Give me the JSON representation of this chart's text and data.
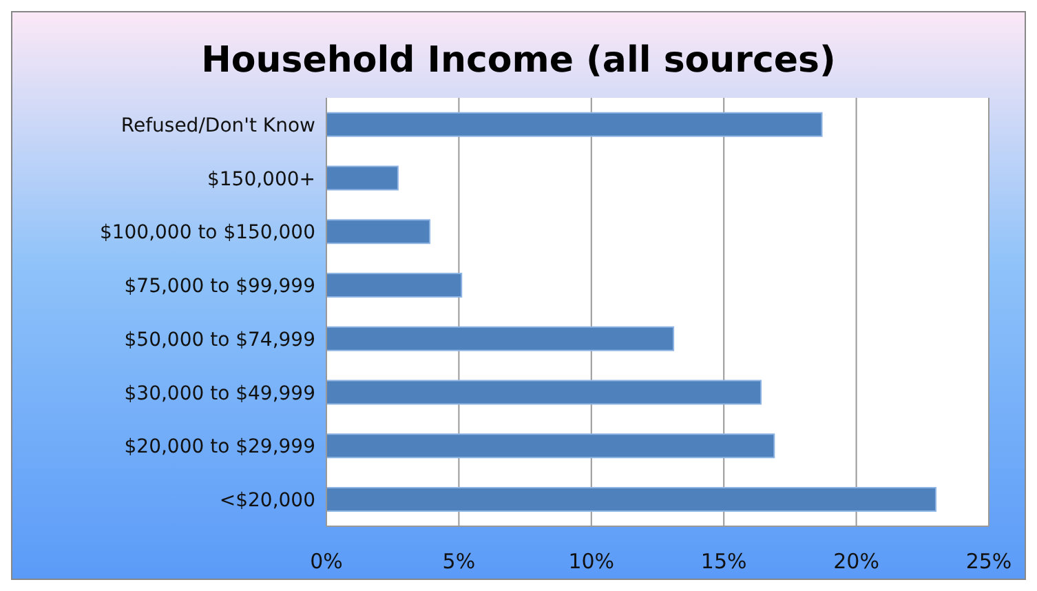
{
  "chart_data": {
    "type": "bar",
    "orientation": "horizontal",
    "title": "Household Income (all sources)",
    "categories": [
      "Refused/Don't Know",
      "$150,000+",
      "$100,000 to $150,000",
      "$75,000 to $99,999",
      "$50,000 to $74,999",
      "$30,000 to $49,999",
      "$20,000 to $29,999",
      "<$20,000"
    ],
    "values": [
      18.7,
      2.7,
      3.9,
      5.1,
      13.1,
      16.4,
      16.9,
      23.0
    ],
    "color": "#4f81bd",
    "xlim": [
      0,
      25
    ],
    "xticks": [
      {
        "value": 0,
        "label": "0%"
      },
      {
        "value": 5,
        "label": "5%"
      },
      {
        "value": 10,
        "label": "10%"
      },
      {
        "value": 15,
        "label": "15%"
      },
      {
        "value": 20,
        "label": "20%"
      },
      {
        "value": 25,
        "label": "25%"
      }
    ],
    "grid": "x",
    "legend": false
  }
}
